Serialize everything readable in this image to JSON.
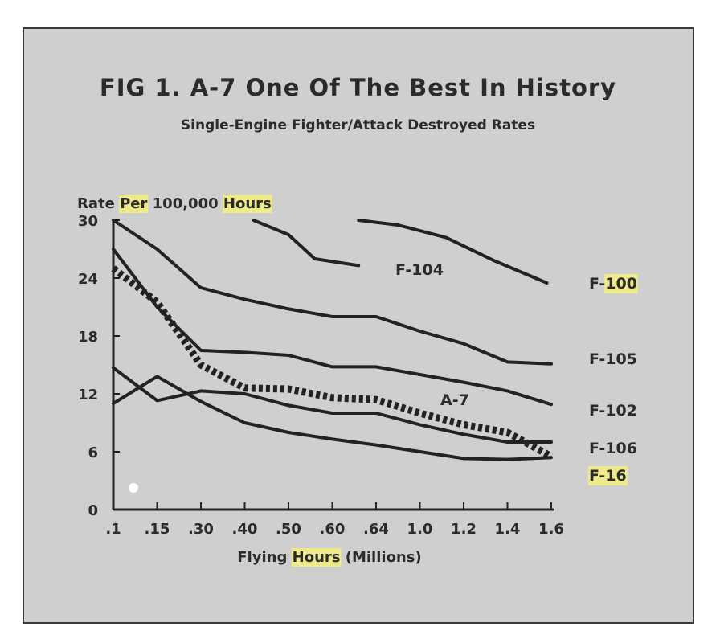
{
  "figure": {
    "title": "FIG 1. A-7 One Of The Best In History",
    "subtitle": "Single-Engine Fighter/Attack Destroyed Rates"
  },
  "chart_data": {
    "type": "line",
    "title": "FIG 1. A-7 One Of The Best In History",
    "subtitle": "Single-Engine Fighter/Attack Destroyed Rates",
    "ylabel_parts": [
      "Rate ",
      "Per",
      " 100,000 ",
      "Hours"
    ],
    "ylabel_highlight": [
      false,
      true,
      false,
      true
    ],
    "xlabel_parts": [
      "Flying ",
      "Hours",
      "    (Millions)"
    ],
    "xlabel_highlight": [
      false,
      true,
      false
    ],
    "highlight_color": "#eeea8a",
    "line_color": "#222222",
    "categories": [
      ".1",
      ".15",
      ".30",
      ".40",
      ".50",
      ".60",
      ".64",
      "1.0",
      "1.2",
      "1.4",
      "1.6"
    ],
    "yticks": [
      0,
      6,
      12,
      18,
      24,
      30
    ],
    "ylim": [
      0,
      30
    ],
    "grid": false,
    "series": [
      {
        "name": "F-104",
        "label_parts": [
          "F-104"
        ],
        "label_highlight": [
          false
        ],
        "x": [
          3.2,
          4.0,
          4.6,
          5.6
        ],
        "values": [
          30,
          28.5,
          26,
          25.3
        ]
      },
      {
        "name": "F-100",
        "label_parts": [
          "F-",
          "100"
        ],
        "label_highlight": [
          false,
          true
        ],
        "x": [
          5.6,
          6.5,
          7.6,
          8.7,
          9.9
        ],
        "values": [
          30,
          29.5,
          28.2,
          25.8,
          23.5
        ]
      },
      {
        "name": "F-105",
        "label_parts": [
          "F-105"
        ],
        "label_highlight": [
          false
        ],
        "x": [
          0,
          1,
          2,
          3,
          4,
          5,
          6,
          7,
          8,
          9,
          10
        ],
        "values": [
          30,
          27,
          23,
          21.8,
          20.8,
          20,
          20,
          18.5,
          17.2,
          15.3,
          15.1
        ]
      },
      {
        "name": "F-102",
        "label_parts": [
          "F-102"
        ],
        "label_highlight": [
          false
        ],
        "x": [
          0,
          1,
          2,
          3,
          4,
          5,
          6,
          7,
          8,
          9,
          10
        ],
        "values": [
          27,
          21,
          16.5,
          16.3,
          16,
          14.8,
          14.8,
          14,
          13.2,
          12.3,
          10.9
        ]
      },
      {
        "name": "A-7",
        "label_parts": [
          "A-7"
        ],
        "label_highlight": [
          false
        ],
        "dashed": true,
        "x": [
          0,
          1,
          2,
          3,
          4,
          5,
          6,
          7,
          8,
          9,
          10
        ],
        "values": [
          25,
          21.5,
          15,
          12.6,
          12.5,
          11.6,
          11.4,
          10,
          8.8,
          8,
          5.5
        ]
      },
      {
        "name": "F-106",
        "label_parts": [
          "F-106"
        ],
        "label_highlight": [
          false
        ],
        "x": [
          0,
          1,
          2,
          3,
          4,
          5,
          6,
          7,
          8,
          9,
          10
        ],
        "values": [
          14.7,
          11.3,
          12.3,
          12,
          10.8,
          10,
          10,
          8.8,
          7.8,
          7,
          7
        ]
      },
      {
        "name": "F-16",
        "label_parts": [
          "F-16"
        ],
        "label_highlight": [
          true
        ],
        "x": [
          0,
          1,
          2,
          3,
          4,
          5,
          6,
          7,
          8,
          9,
          10
        ],
        "values": [
          11,
          13.8,
          11.2,
          9,
          8,
          7.3,
          6.7,
          6,
          5.3,
          5.2,
          5.4
        ]
      }
    ]
  }
}
